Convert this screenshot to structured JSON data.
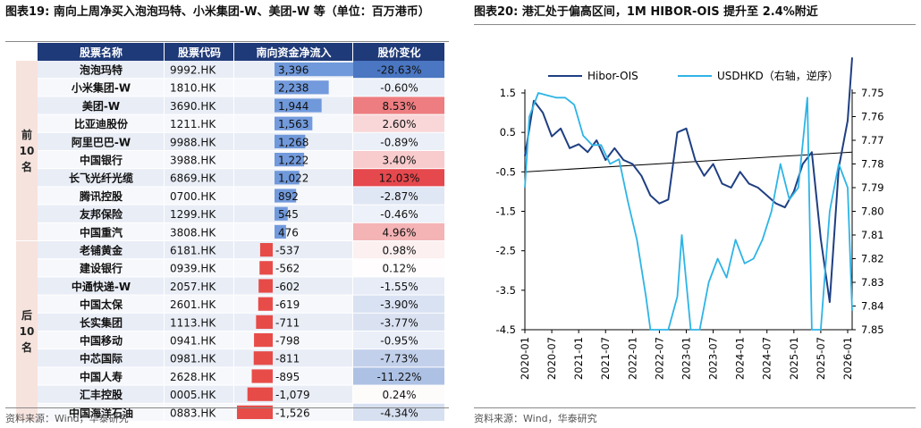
{
  "figures": [
    {
      "title": "图表19:  南向上周净买入泡泡玛特、小米集团-W、美团-W 等（单位：百万港币）",
      "source": "资料来源：Wind，华泰研究"
    },
    {
      "title": "图表20:  港汇处于偏高区间，1M HIBOR-OIS 提升至 2.4%附近",
      "source": "资料来源：Wind，华泰研究"
    }
  ],
  "chart_data": [
    {
      "type": "table",
      "columns": [
        "股票名称",
        "股票代码",
        "南向资金净流入",
        "股价变化"
      ],
      "groups": [
        {
          "label": "前\n10\n名",
          "rows": 10
        },
        {
          "label": "后\n10\n名",
          "rows": 10
        }
      ],
      "rows": [
        {
          "name": "泡泡玛特",
          "code": "9992.HK",
          "flow": 3396,
          "flow_text": "3,396",
          "chg": -28.63,
          "chg_text": "-28.63%"
        },
        {
          "name": "小米集团-W",
          "code": "1810.HK",
          "flow": 2238,
          "flow_text": "2,238",
          "chg": -0.6,
          "chg_text": "-0.60%"
        },
        {
          "name": "美团-W",
          "code": "3690.HK",
          "flow": 1944,
          "flow_text": "1,944",
          "chg": 8.53,
          "chg_text": "8.53%"
        },
        {
          "name": "比亚迪股份",
          "code": "1211.HK",
          "flow": 1563,
          "flow_text": "1,563",
          "chg": 2.6,
          "chg_text": "2.60%"
        },
        {
          "name": "阿里巴巴-W",
          "code": "9988.HK",
          "flow": 1268,
          "flow_text": "1,268",
          "chg": -0.89,
          "chg_text": "-0.89%"
        },
        {
          "name": "中国银行",
          "code": "3988.HK",
          "flow": 1222,
          "flow_text": "1,222",
          "chg": 3.4,
          "chg_text": "3.40%"
        },
        {
          "name": "长飞光纤光缆",
          "code": "6869.HK",
          "flow": 1022,
          "flow_text": "1,022",
          "chg": 12.03,
          "chg_text": "12.03%"
        },
        {
          "name": "腾讯控股",
          "code": "0700.HK",
          "flow": 892,
          "flow_text": "892",
          "chg": -2.87,
          "chg_text": "-2.87%"
        },
        {
          "name": "友邦保险",
          "code": "1299.HK",
          "flow": 545,
          "flow_text": "545",
          "chg": -0.46,
          "chg_text": "-0.46%"
        },
        {
          "name": "中国重汽",
          "code": "3808.HK",
          "flow": 476,
          "flow_text": "476",
          "chg": 4.96,
          "chg_text": "4.96%"
        },
        {
          "name": "老铺黄金",
          "code": "6181.HK",
          "flow": -537,
          "flow_text": "-537",
          "chg": 0.98,
          "chg_text": "0.98%"
        },
        {
          "name": "建设银行",
          "code": "0939.HK",
          "flow": -562,
          "flow_text": "-562",
          "chg": 0.12,
          "chg_text": "0.12%"
        },
        {
          "name": "中通快递-W",
          "code": "2057.HK",
          "flow": -602,
          "flow_text": "-602",
          "chg": -1.55,
          "chg_text": "-1.55%"
        },
        {
          "name": "中国太保",
          "code": "2601.HK",
          "flow": -619,
          "flow_text": "-619",
          "chg": -3.9,
          "chg_text": "-3.90%"
        },
        {
          "name": "长实集团",
          "code": "1113.HK",
          "flow": -711,
          "flow_text": "-711",
          "chg": -3.77,
          "chg_text": "-3.77%"
        },
        {
          "name": "中国移动",
          "code": "0941.HK",
          "flow": -798,
          "flow_text": "-798",
          "chg": -0.95,
          "chg_text": "-0.95%"
        },
        {
          "name": "中芯国际",
          "code": "0981.HK",
          "flow": -811,
          "flow_text": "-811",
          "chg": -7.73,
          "chg_text": "-7.73%"
        },
        {
          "name": "中国人寿",
          "code": "2628.HK",
          "flow": -895,
          "flow_text": "-895",
          "chg": -11.22,
          "chg_text": "-11.22%"
        },
        {
          "name": "汇丰控股",
          "code": "0005.HK",
          "flow": -1079,
          "flow_text": "-1,079",
          "chg": 0.24,
          "chg_text": "0.24%"
        },
        {
          "name": "中国海洋石油",
          "code": "0883.HK",
          "flow": -1526,
          "flow_text": "-1,526",
          "chg": -4.34,
          "chg_text": "-4.34%"
        }
      ],
      "colors": {
        "header": "#1f3a78",
        "pos_bar": "#5b8ad6",
        "neg_bar": "#e53935",
        "up": "#e5484d",
        "down": "#4a76c2",
        "group_bg": "#f6e3dd"
      }
    },
    {
      "type": "line",
      "series": [
        {
          "name": "Hibor-OIS",
          "axis": "left",
          "color": "#1f3f82",
          "x": [
            "2020-01",
            "2020-03",
            "2020-05",
            "2020-07",
            "2020-09",
            "2020-11",
            "2021-01",
            "2021-03",
            "2021-05",
            "2021-07",
            "2021-09",
            "2021-11",
            "2022-01",
            "2022-03",
            "2022-05",
            "2022-07",
            "2022-09",
            "2022-11",
            "2023-01",
            "2023-03",
            "2023-05",
            "2023-07",
            "2023-09",
            "2023-11",
            "2024-01",
            "2024-03",
            "2024-05",
            "2024-07",
            "2024-09",
            "2024-11",
            "2025-01",
            "2025-03",
            "2025-05",
            "2025-07",
            "2025-09",
            "2025-11",
            "2026-01",
            "2026-02"
          ],
          "y": [
            -0.1,
            1.3,
            1.0,
            0.4,
            0.6,
            0.1,
            0.2,
            0.0,
            0.3,
            -0.2,
            0.1,
            -0.2,
            -0.3,
            -0.6,
            -1.1,
            -1.3,
            -1.2,
            0.5,
            0.6,
            -0.2,
            -0.6,
            -0.3,
            -0.8,
            -0.9,
            -0.5,
            -0.8,
            -0.9,
            -1.1,
            -1.3,
            -1.4,
            -1.0,
            -0.3,
            0.0,
            -2.2,
            -3.8,
            -0.4,
            0.8,
            2.4
          ]
        },
        {
          "name": "USDHKD（右轴，逆序）",
          "axis": "right",
          "color": "#2eb4e6",
          "x": [
            "2020-01",
            "2020-02",
            "2020-04",
            "2020-06",
            "2020-08",
            "2020-10",
            "2020-12",
            "2021-02",
            "2021-04",
            "2021-06",
            "2021-08",
            "2021-10",
            "2021-12",
            "2022-02",
            "2022-04",
            "2022-05",
            "2022-07",
            "2022-09",
            "2022-11",
            "2022-12",
            "2023-02",
            "2023-04",
            "2023-06",
            "2023-08",
            "2023-10",
            "2023-12",
            "2024-02",
            "2024-04",
            "2024-06",
            "2024-08",
            "2024-10",
            "2024-12",
            "2025-02",
            "2025-04",
            "2025-05",
            "2025-07",
            "2025-09",
            "2025-11",
            "2026-01",
            "2026-02"
          ],
          "y": [
            7.79,
            7.76,
            7.75,
            7.751,
            7.752,
            7.752,
            7.755,
            7.768,
            7.772,
            7.772,
            7.78,
            7.778,
            7.796,
            7.812,
            7.836,
            7.85,
            7.85,
            7.85,
            7.836,
            7.81,
            7.85,
            7.85,
            7.83,
            7.82,
            7.828,
            7.812,
            7.822,
            7.82,
            7.812,
            7.8,
            7.78,
            7.795,
            7.79,
            7.752,
            7.85,
            7.85,
            7.8,
            7.78,
            7.79,
            7.842
          ]
        }
      ],
      "x_ticks": [
        "2020-01",
        "2020-07",
        "2021-01",
        "2021-07",
        "2022-01",
        "2022-07",
        "2023-01",
        "2023-07",
        "2024-01",
        "2024-07",
        "2025-01",
        "2025-07",
        "2026-01"
      ],
      "x_range": [
        "2020-01",
        "2026-02"
      ],
      "ylim_left": [
        -4.5,
        1.5
      ],
      "yticks_left": [
        "1.5",
        "0.5",
        "-0.5",
        "-1.5",
        "-2.5",
        "-3.5",
        "-4.5"
      ],
      "ylim_right": [
        7.75,
        7.85
      ],
      "yticks_right": [
        "7.75",
        "7.76",
        "7.77",
        "7.78",
        "7.79",
        "7.80",
        "7.81",
        "7.82",
        "7.83",
        "7.84",
        "7.85"
      ],
      "right_reversed": true,
      "legend": "top-left",
      "grid": false,
      "zero_line": true
    }
  ]
}
